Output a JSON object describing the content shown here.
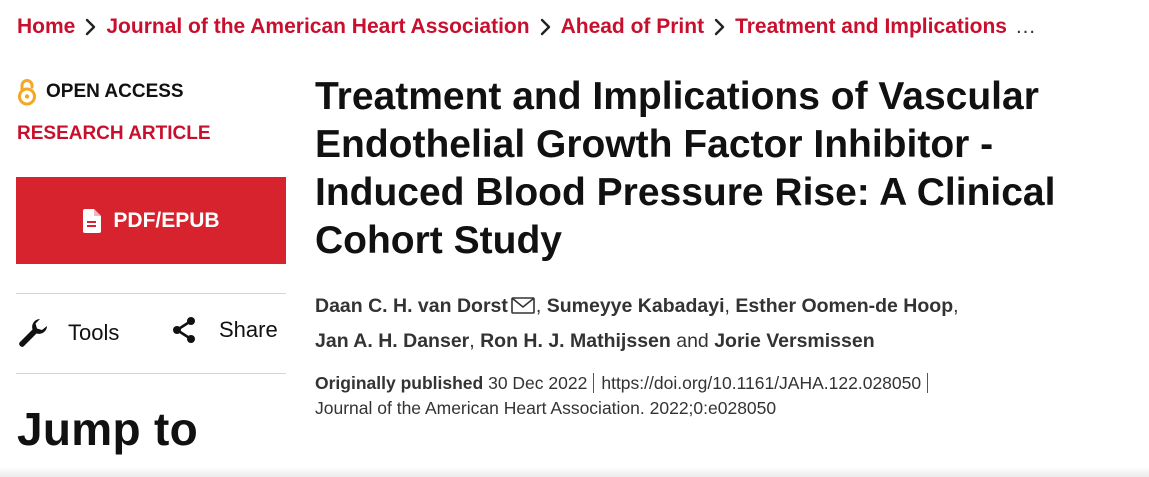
{
  "breadcrumb": {
    "items": [
      {
        "label": "Home"
      },
      {
        "label": "Journal of the American Heart Association"
      },
      {
        "label": "Ahead of Print"
      },
      {
        "label": "Treatment and Implications"
      }
    ],
    "overflow": "…"
  },
  "access": {
    "label": "OPEN ACCESS",
    "icon": "open-lock-icon",
    "color": "#f5a623"
  },
  "article_type": "RESEARCH ARTICLE",
  "pdf_button": {
    "label": "PDF/EPUB",
    "icon": "file-icon",
    "color": "#d6232e"
  },
  "tools": {
    "label": "Tools",
    "icon": "wrench-icon"
  },
  "share": {
    "label": "Share",
    "icon": "share-icon"
  },
  "jump_to": "Jump to",
  "article": {
    "title": "Treatment and Implications of Vascular Endothelial Growth Factor Inhibitor ‐ Induced Blood Pressure Rise: A Clinical Cohort Study",
    "authors": [
      "Daan C. H. van Dorst",
      "Sumeyye Kabadayi",
      "Esther Oomen-de Hoop",
      "Jan A. H. Danser",
      "Ron H. J. Mathijssen",
      "Jorie Versmissen"
    ],
    "and_word": "and",
    "published_label": "Originally published",
    "published_date": "30 Dec 2022",
    "doi": "https://doi.org/10.1161/JAHA.122.028050",
    "citation": "Journal of the American Heart Association. 2022;0:e028050"
  },
  "brand_color": "#c8102e"
}
